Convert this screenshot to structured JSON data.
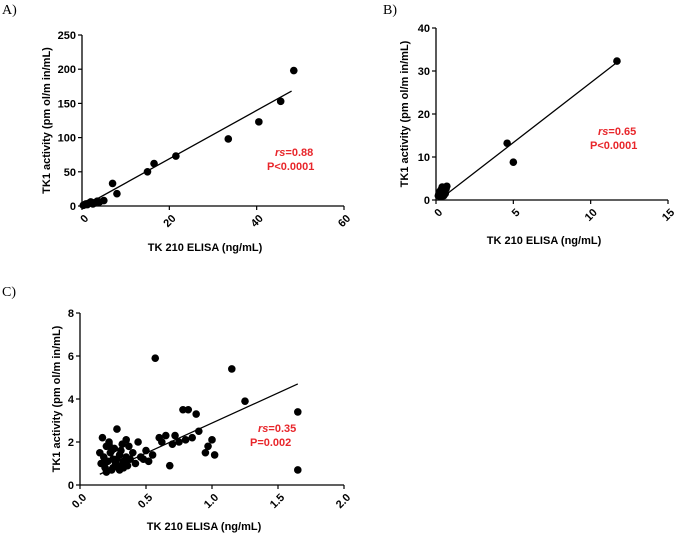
{
  "chart_data": [
    {
      "type": "scatter",
      "panel_label": "A)",
      "xlabel": "TK 210 ELISA (ng/mL)",
      "ylabel": "TK1 activity (pm ol/m in/mL)",
      "xlim": [
        0,
        60
      ],
      "ylim": [
        0,
        250
      ],
      "xticks": [
        "0",
        "20",
        "40",
        "60"
      ],
      "yticks": [
        "0",
        "50",
        "100",
        "150",
        "200",
        "250"
      ],
      "xtick_rotation": -45,
      "rs_symbol": "rs",
      "rs_value": "=0.88",
      "p_text": "P<0.0001",
      "fit_line": [
        [
          0.5,
          0
        ],
        [
          48,
          168
        ]
      ],
      "x": [
        0.3,
        0.6,
        0.9,
        1.2,
        1.5,
        2,
        2.5,
        3,
        3.5,
        4,
        5,
        7,
        8,
        15,
        16.5,
        21.5,
        33.5,
        40.5,
        45.5,
        48.5
      ],
      "y": [
        1,
        2,
        3,
        2,
        4,
        6,
        3,
        5,
        7,
        6,
        8,
        33,
        18,
        50,
        62,
        73,
        98,
        123,
        153,
        198
      ]
    },
    {
      "type": "scatter",
      "panel_label": "B)",
      "xlabel": "TK 210 ELISA (ng/mL)",
      "ylabel": "TK1 activity (pm ol/m in/mL)",
      "xlim": [
        0,
        15
      ],
      "ylim": [
        0,
        40
      ],
      "xticks": [
        "0",
        "5",
        "10",
        "15"
      ],
      "yticks": [
        "0",
        "10",
        "20",
        "30",
        "40"
      ],
      "xtick_rotation": -45,
      "rs_symbol": "rs",
      "rs_value": "=0.65",
      "p_text": "P<0.0001",
      "fit_line": [
        [
          0.2,
          0
        ],
        [
          11.7,
          32
        ]
      ],
      "x": [
        0.15,
        0.2,
        0.25,
        0.3,
        0.35,
        0.4,
        0.45,
        0.5,
        0.55,
        0.6,
        0.65,
        0.7,
        0.3,
        0.5,
        4.6,
        5,
        11.7
      ],
      "y": [
        1,
        1.5,
        2,
        1.2,
        2.5,
        3,
        1.8,
        2.2,
        2.8,
        1.5,
        2.6,
        3.2,
        0.8,
        1.0,
        13.2,
        8.8,
        32.3
      ]
    },
    {
      "type": "scatter",
      "panel_label": "C)",
      "xlabel": "TK 210 ELISA (ng/mL)",
      "ylabel": "TK1 activity (pm ol/m in/mL)",
      "xlim": [
        0,
        2
      ],
      "ylim": [
        0,
        8
      ],
      "xticks": [
        "0.0",
        "0.5",
        "1.0",
        "1.5",
        "2.0"
      ],
      "yticks": [
        "0",
        "2",
        "4",
        "6",
        "8"
      ],
      "xtick_rotation": -45,
      "rs_symbol": "rs",
      "rs_value": "=0.35",
      "p_text": "P=0.002",
      "fit_line": [
        [
          0.15,
          0.5
        ],
        [
          1.65,
          4.7
        ]
      ],
      "x": [
        0.15,
        0.16,
        0.17,
        0.18,
        0.19,
        0.2,
        0.21,
        0.22,
        0.23,
        0.24,
        0.25,
        0.26,
        0.27,
        0.28,
        0.29,
        0.3,
        0.31,
        0.32,
        0.33,
        0.35,
        0.36,
        0.37,
        0.38,
        0.4,
        0.42,
        0.44,
        0.46,
        0.48,
        0.5,
        0.52,
        0.55,
        0.57,
        0.6,
        0.62,
        0.65,
        0.68,
        0.7,
        0.72,
        0.75,
        0.78,
        0.8,
        0.82,
        0.85,
        0.88,
        0.9,
        0.95,
        0.97,
        1.0,
        1.02,
        1.15,
        1.25,
        1.65,
        1.65,
        0.2,
        0.25,
        0.3,
        0.22,
        0.28,
        0.35,
        0.18,
        0.24,
        0.33
      ],
      "y": [
        1.5,
        1.0,
        2.2,
        1.3,
        0.8,
        1.8,
        1.1,
        2.0,
        1.5,
        0.7,
        1.2,
        1.7,
        1.0,
        2.6,
        0.9,
        1.4,
        1.6,
        1.9,
        1.1,
        1.3,
        0.9,
        1.8,
        1.2,
        1.5,
        1.0,
        2.0,
        1.3,
        1.2,
        1.6,
        1.1,
        1.4,
        5.9,
        2.2,
        2.0,
        2.3,
        0.9,
        1.9,
        2.3,
        2.0,
        3.5,
        2.1,
        3.5,
        2.2,
        3.3,
        2.5,
        1.5,
        1.8,
        2.1,
        1.4,
        5.4,
        3.9,
        3.4,
        0.7,
        0.6,
        0.8,
        0.7,
        1.9,
        1.2,
        2.1,
        1.0,
        1.6,
        0.8
      ]
    }
  ]
}
